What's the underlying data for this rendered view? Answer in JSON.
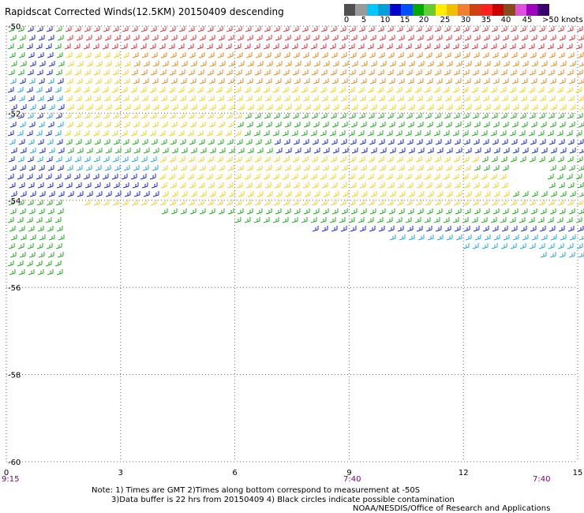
{
  "title": "Rapidscat Corrected Winds(12.5KM) 20150409 descending",
  "legend": {
    "colors": [
      "#505050",
      "#9a9a9a",
      "#00c8ff",
      "#00a0d8",
      "#0000cc",
      "#0050ff",
      "#00aa00",
      "#66cc33",
      "#ffee00",
      "#f0c000",
      "#f08030",
      "#d04010",
      "#ff2020",
      "#cc0000",
      "#8a4a1e",
      "#e050e0",
      "#a000c0",
      "#3c0070"
    ],
    "labels": [
      "0",
      "5",
      "10",
      "15",
      "20",
      "25",
      "30",
      "35",
      "40",
      "45",
      ">50 knots"
    ]
  },
  "axes": {
    "y_ticks": [
      "-50",
      "-52",
      "-54",
      "-56",
      "-58",
      "-60"
    ],
    "x_ticks": [
      "0",
      "3",
      "6",
      "9",
      "12",
      "15"
    ],
    "time_labels": [
      "9:15",
      "7:40",
      "7:40"
    ]
  },
  "footer": {
    "line1": "Note: 1) Times are GMT 2)Times along bottom correspond to measurement at -50S",
    "line2": "3)Data buffer is 22 hrs from 20150409 4) Black circles indicate possible contamination",
    "credit": "NOAA/NESDIS/Office of Research and Applications"
  },
  "map_data": {
    "type": "wind-barb swath",
    "lon_range": [
      0,
      15
    ],
    "lat_range": [
      -60,
      -50
    ],
    "bands": [
      {
        "name": "yellow",
        "color": "#f0d020",
        "knots_range": [
          20,
          25
        ]
      },
      {
        "name": "orange",
        "color": "#e8881e",
        "knots_range": [
          25,
          30
        ]
      },
      {
        "name": "red",
        "color": "#e0303a",
        "knots_range": [
          30,
          35
        ]
      },
      {
        "name": "green",
        "color": "#22aa22",
        "knots_range": [
          15,
          20
        ]
      },
      {
        "name": "blue",
        "color": "#1a2acc",
        "knots_range": [
          10,
          15
        ]
      },
      {
        "name": "cyan",
        "color": "#22aadd",
        "knots_range": [
          5,
          10
        ]
      },
      {
        "name": "black",
        "color": "#000000",
        "knots_range": [
          0,
          5
        ]
      }
    ]
  }
}
